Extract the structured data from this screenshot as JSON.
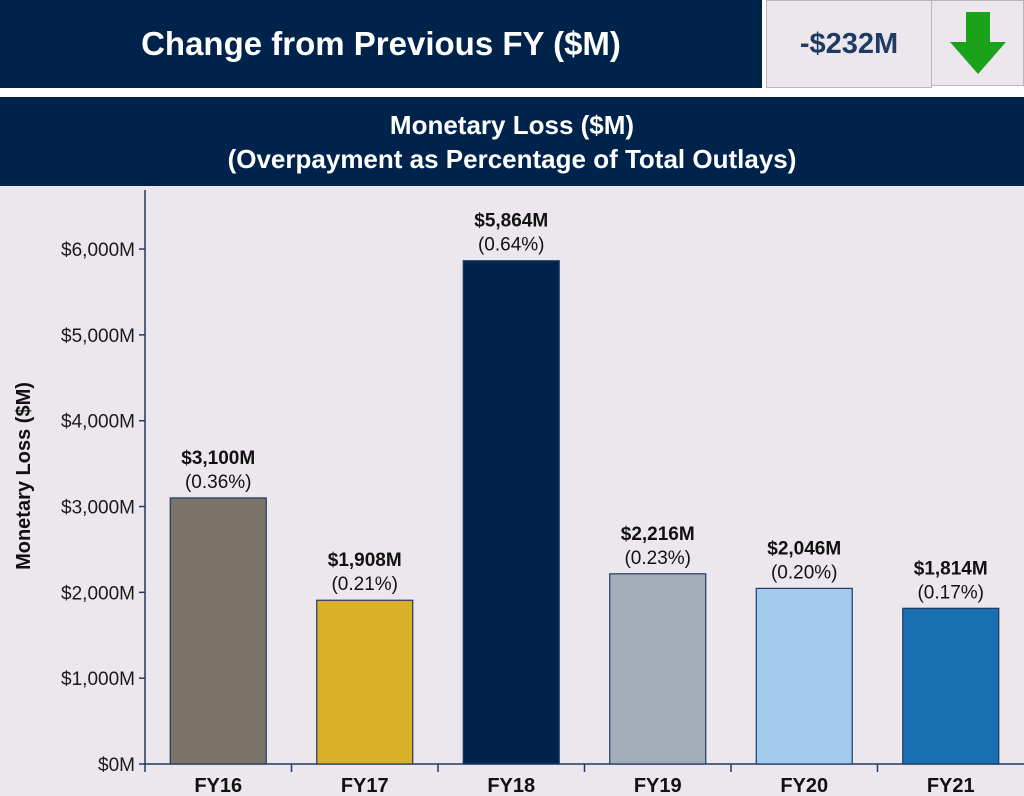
{
  "header": {
    "title": "Change from Previous FY ($M)",
    "change_value": "-$232M",
    "trend_icon": "down-arrow-icon",
    "trend_color": "#1aa31a"
  },
  "chart_header": {
    "line1": "Monetary Loss ($M)",
    "line2": "(Overpayment as Percentage of Total Outlays)"
  },
  "colors": {
    "banner": "#00234b",
    "panel": "#ebe7ec",
    "axis": "#1f3a63"
  },
  "chart_data": {
    "type": "bar",
    "title": "Monetary Loss ($M)",
    "subtitle": "(Overpayment as Percentage of Total Outlays)",
    "xlabel": "",
    "ylabel": "Monetary Loss ($M)",
    "ylim": [
      0,
      6600
    ],
    "yticks": [
      0,
      1000,
      2000,
      3000,
      4000,
      5000,
      6000
    ],
    "ytick_labels": [
      "$0M",
      "$1,000M",
      "$2,000M",
      "$3,000M",
      "$4,000M",
      "$5,000M",
      "$6,000M"
    ],
    "categories": [
      "FY16",
      "FY17",
      "FY18",
      "FY19",
      "FY20",
      "FY21"
    ],
    "values": [
      3100,
      1908,
      5864,
      2216,
      2046,
      1814
    ],
    "value_labels": [
      "$3,100M",
      "$1,908M",
      "$5,864M",
      "$2,216M",
      "$2,046M",
      "$1,814M"
    ],
    "percent_labels": [
      "(0.36%)",
      "(0.21%)",
      "(0.64%)",
      "(0.23%)",
      "(0.20%)",
      "(0.17%)"
    ],
    "bar_colors": [
      "#7b7268",
      "#d9b128",
      "#00234b",
      "#a3adb9",
      "#a2cbee",
      "#1870b0"
    ],
    "grid": false
  }
}
